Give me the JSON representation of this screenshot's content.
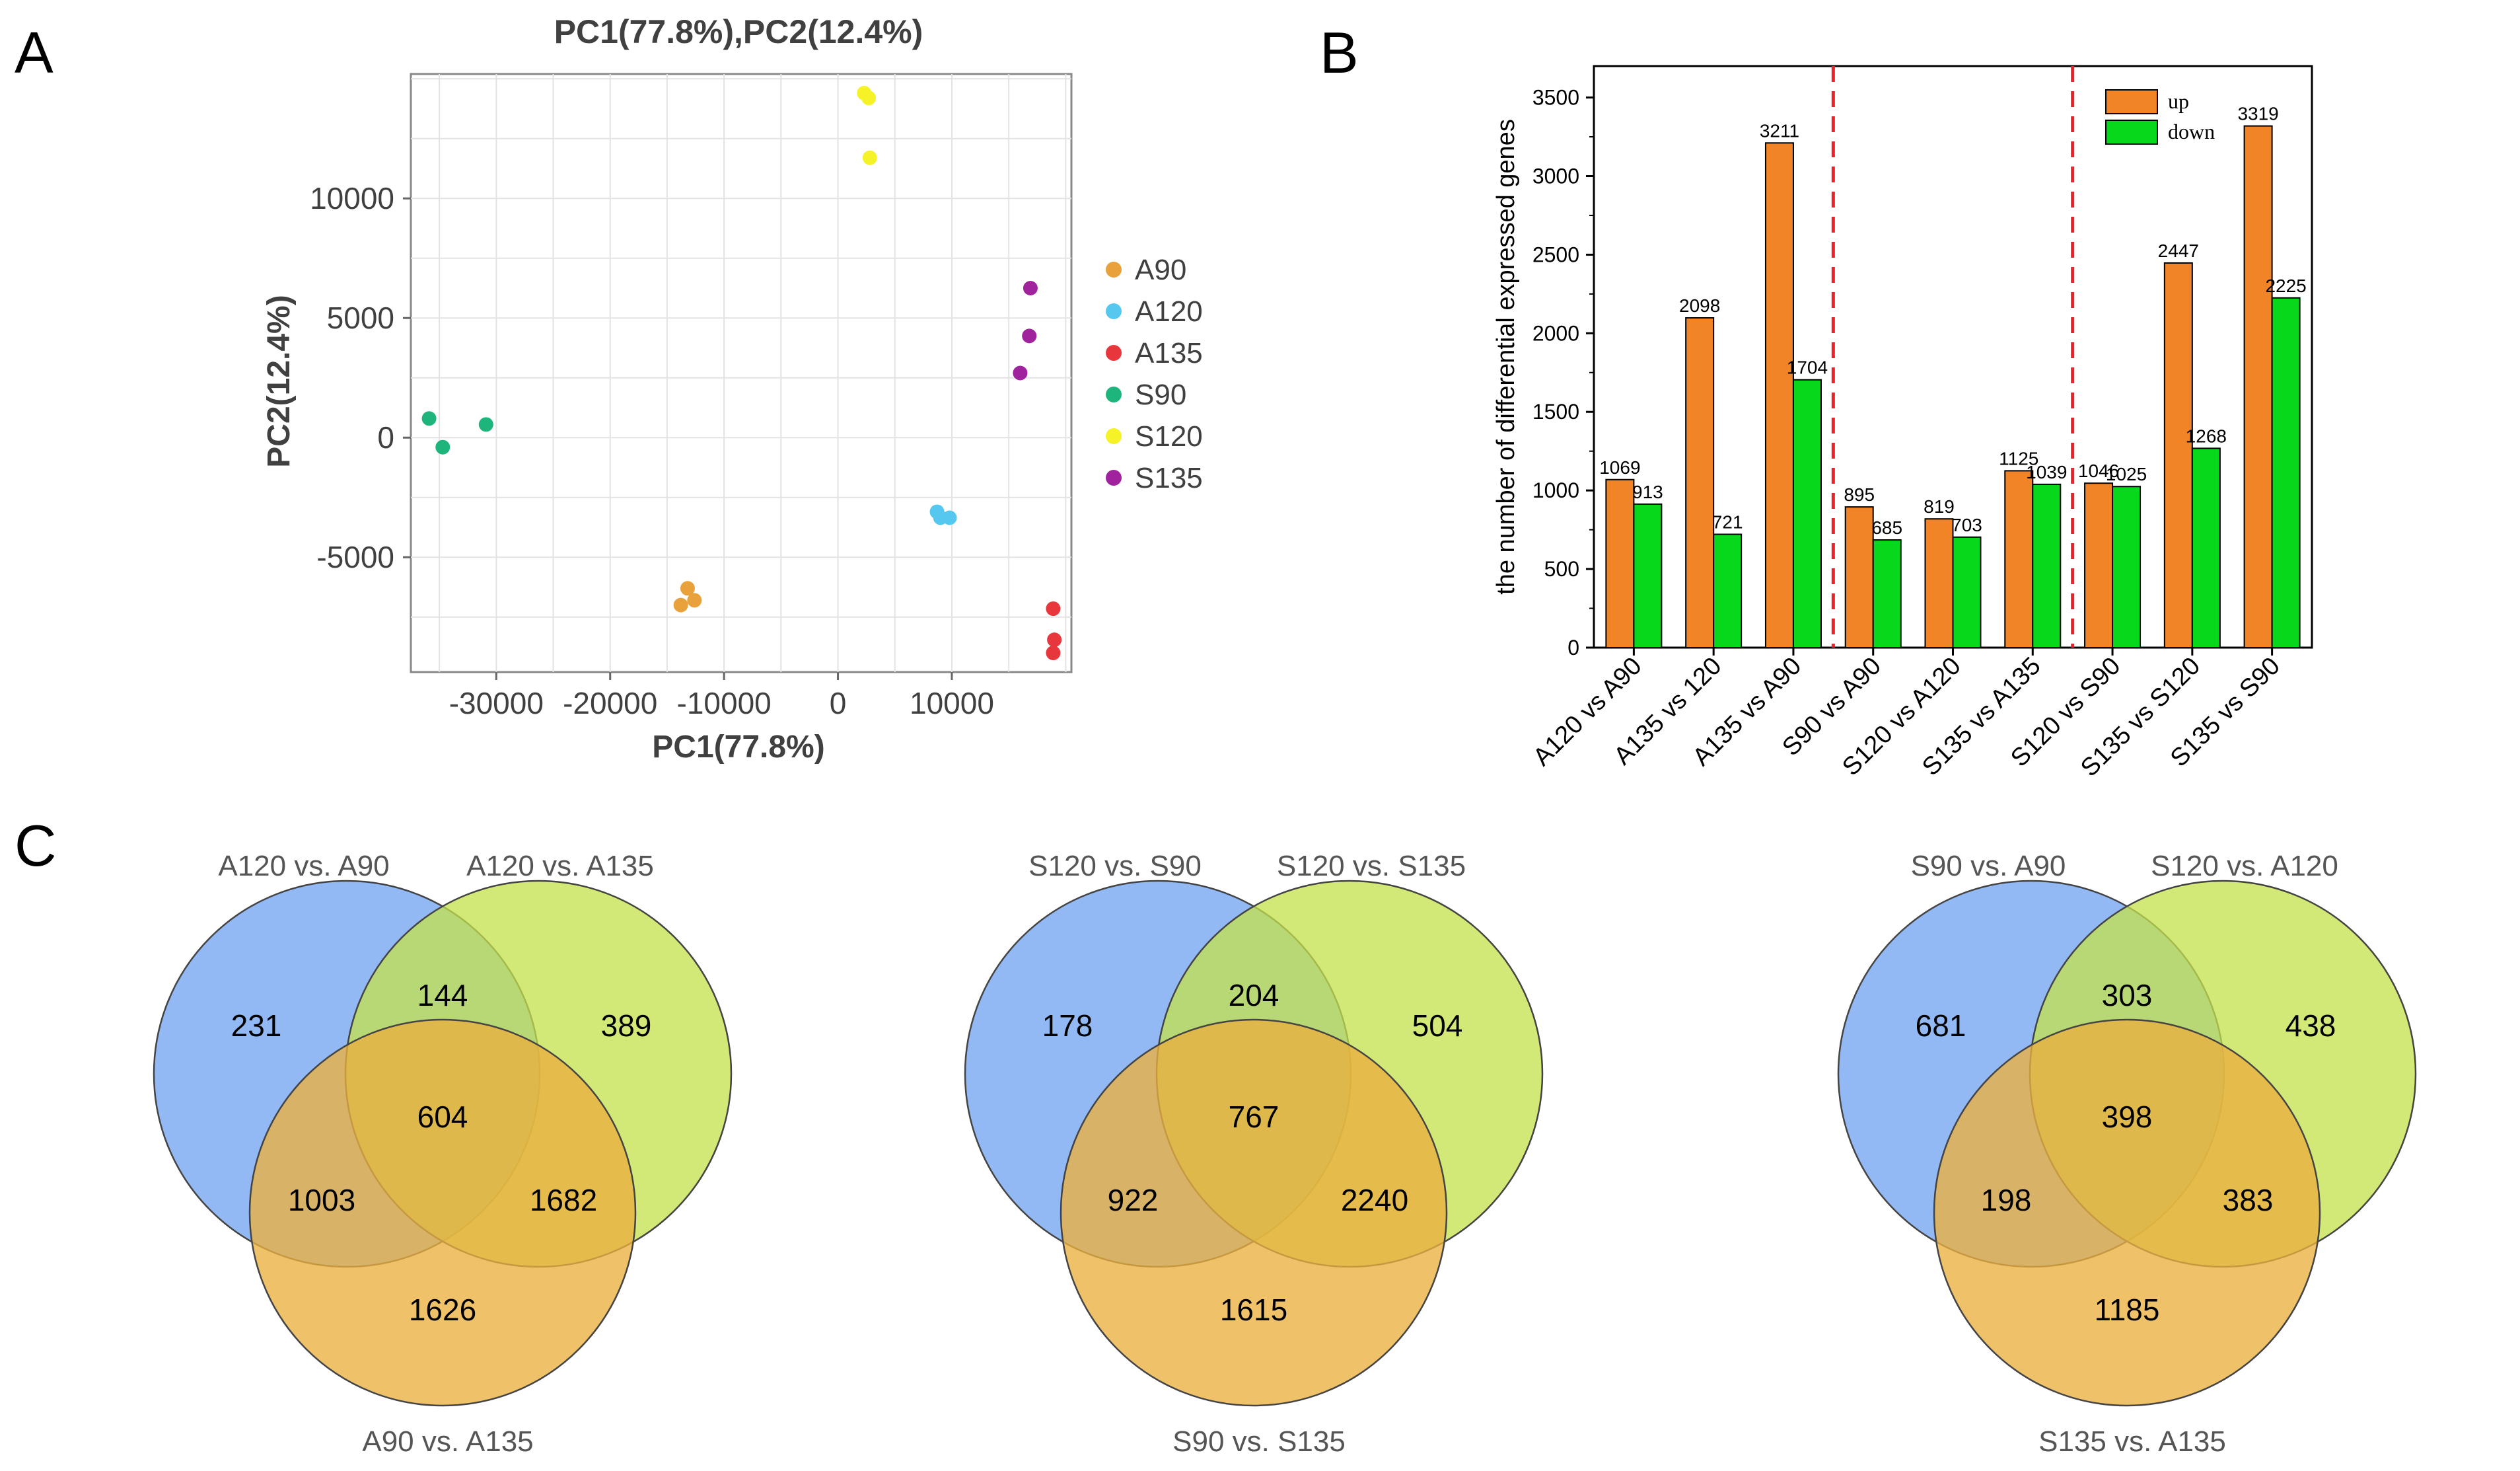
{
  "panels": {
    "a": "A",
    "b": "B",
    "c": "C"
  },
  "chart_data": [
    {
      "type": "scatter",
      "title": "PC1(77.8%),PC2(12.4%)",
      "xlabel": "PC1(77.8%)",
      "ylabel": "PC2(12.4%)",
      "xlim": [
        -37500,
        20500
      ],
      "ylim": [
        -9800,
        15200
      ],
      "xticks": [
        -30000,
        -20000,
        -10000,
        0,
        10000
      ],
      "xtick_labels": [
        "-30000",
        "-20000",
        "-10000",
        "0",
        "10000"
      ],
      "yticks": [
        -5000,
        0,
        5000,
        10000
      ],
      "ytick_labels": [
        "-5000",
        "0",
        "5000",
        "10000"
      ],
      "grid": true,
      "legend_position": "right",
      "series": [
        {
          "name": "A90",
          "color": "#e9a23b",
          "points": [
            [
              -13200,
              -6300
            ],
            [
              -12600,
              -6800
            ],
            [
              -13800,
              -7000
            ]
          ]
        },
        {
          "name": "A120",
          "color": "#56c8f0",
          "points": [
            [
              8700,
              -3100
            ],
            [
              9000,
              -3350
            ],
            [
              9800,
              -3350
            ]
          ]
        },
        {
          "name": "A135",
          "color": "#e8373c",
          "points": [
            [
              18900,
              -7150
            ],
            [
              19000,
              -8450
            ],
            [
              18900,
              -9000
            ]
          ]
        },
        {
          "name": "S90",
          "color": "#1eb57d",
          "points": [
            [
              -35900,
              800
            ],
            [
              -34700,
              -400
            ],
            [
              -30900,
              550
            ]
          ]
        },
        {
          "name": "S120",
          "color": "#f5f228",
          "points": [
            [
              2300,
              14400
            ],
            [
              2700,
              14200
            ],
            [
              2800,
              11700
            ]
          ]
        },
        {
          "name": "S135",
          "color": "#a0239d",
          "points": [
            [
              16900,
              6250
            ],
            [
              16800,
              4250
            ],
            [
              16000,
              2700
            ]
          ]
        }
      ]
    },
    {
      "type": "bar",
      "ylabel": "the number of differential expressed genes",
      "ylim": [
        0,
        3700
      ],
      "yticks": [
        0,
        500,
        1000,
        1500,
        2000,
        2500,
        3000,
        3500
      ],
      "ytick_labels": [
        "0",
        "500",
        "1000",
        "1500",
        "2000",
        "2500",
        "3000",
        "3500"
      ],
      "categories": [
        "A120 vs A90",
        "A135 vs 120",
        "A135 vs A90",
        "S90 vs A90",
        "S120 vs A120",
        "S135 vs A135",
        "S120 vs S90",
        "S135 vs S120",
        "S135 vs S90"
      ],
      "series": [
        {
          "name": "up",
          "color": "#f08426",
          "values": [
            1069,
            2098,
            3211,
            895,
            819,
            1125,
            1046,
            2447,
            3319
          ]
        },
        {
          "name": "down",
          "color": "#08d81b",
          "values": [
            913,
            721,
            1704,
            685,
            703,
            1039,
            1025,
            1268,
            2225
          ]
        }
      ],
      "value_labels": {
        "up": [
          "1069",
          "2098",
          "3211",
          "895",
          "819",
          "1125",
          "1046",
          "2447",
          "3319"
        ],
        "down": [
          "913",
          "721",
          "1704",
          "685",
          "703",
          "1039",
          "1025",
          "1268",
          "2225"
        ]
      },
      "separators_after_category": [
        3,
        6
      ],
      "separator_color": "#e8232a",
      "legend_position": "top-right"
    }
  ],
  "venn": [
    {
      "labels": {
        "top_left": "A120 vs. A90",
        "top_right": "A120 vs. A135",
        "bottom": "A90 vs. A135"
      },
      "regions": {
        "a_only": "231",
        "b_only": "389",
        "c_only": "1626",
        "ab": "144",
        "ac": "1003",
        "bc": "1682",
        "abc": "604"
      }
    },
    {
      "labels": {
        "top_left": "S120 vs. S90",
        "top_right": "S120 vs. S135",
        "bottom": "S90 vs. S135"
      },
      "regions": {
        "a_only": "178",
        "b_only": "504",
        "c_only": "1615",
        "ab": "204",
        "ac": "922",
        "bc": "2240",
        "abc": "767"
      }
    },
    {
      "labels": {
        "top_left": "S90 vs. A90",
        "top_right": "S120 vs. A120",
        "bottom": "S135 vs. A135"
      },
      "regions": {
        "a_only": "681",
        "b_only": "438",
        "c_only": "1185",
        "ab": "303",
        "ac": "198",
        "bc": "383",
        "abc": "398"
      }
    }
  ],
  "venn_colors": {
    "a": "#6fa1f2",
    "b": "#c4e14a",
    "c": "#ebaf3f"
  }
}
